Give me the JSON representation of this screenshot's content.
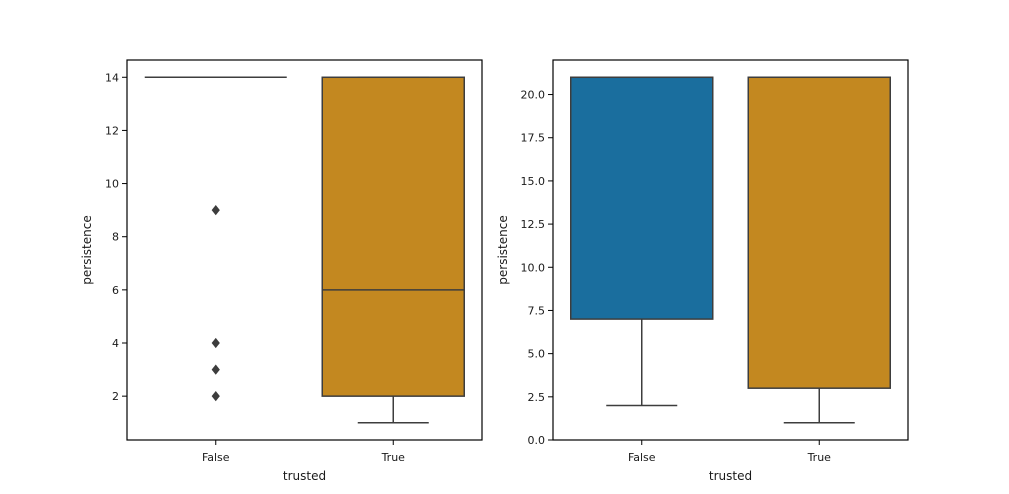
{
  "chart_data": [
    {
      "type": "box",
      "xlabel": "trusted",
      "ylabel": "persistence",
      "ylim": [
        0.35,
        14.65
      ],
      "yticks": [
        2,
        4,
        6,
        8,
        10,
        12,
        14
      ],
      "ytick_labels": [
        "2",
        "4",
        "6",
        "8",
        "10",
        "12",
        "14"
      ],
      "categories": [
        "False",
        "True"
      ],
      "boxes": [
        {
          "category": "False",
          "color": "#1a6e9e",
          "q1": 14,
          "median": 14,
          "q3": 14,
          "whisker_low": 14,
          "whisker_high": 14,
          "outliers": [
            9,
            4,
            3,
            2
          ]
        },
        {
          "category": "True",
          "color": "#c38820",
          "q1": 2,
          "median": 6,
          "q3": 14,
          "whisker_low": 1,
          "whisker_high": 14,
          "outliers": []
        }
      ]
    },
    {
      "type": "box",
      "xlabel": "trusted",
      "ylabel": "persistence",
      "ylim": [
        0,
        22
      ],
      "yticks": [
        0,
        2.5,
        5,
        7.5,
        10,
        12.5,
        15,
        17.5,
        20
      ],
      "ytick_labels": [
        "0.0",
        "2.5",
        "5.0",
        "7.5",
        "10.0",
        "12.5",
        "15.0",
        "17.5",
        "20.0"
      ],
      "categories": [
        "False",
        "True"
      ],
      "boxes": [
        {
          "category": "False",
          "color": "#1a6e9e",
          "q1": 7,
          "median": 21,
          "q3": 21,
          "whisker_low": 2,
          "whisker_high": 21,
          "outliers": []
        },
        {
          "category": "True",
          "color": "#c38820",
          "q1": 3,
          "median": 21,
          "q3": 21,
          "whisker_low": 1,
          "whisker_high": 21,
          "outliers": []
        }
      ]
    }
  ]
}
